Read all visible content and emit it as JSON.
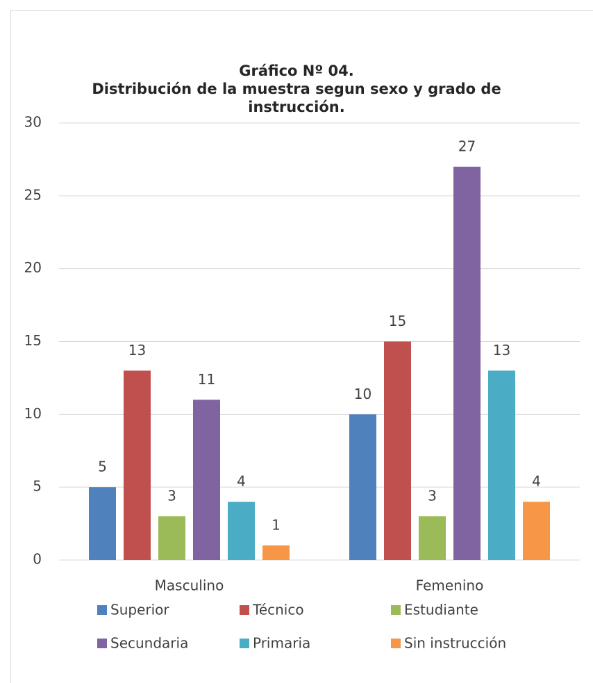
{
  "chart_data": {
    "type": "bar",
    "title": [
      "Gráfico Nº 04.",
      "Distribución de la muestra segun sexo y grado de",
      "instrucción."
    ],
    "categories": [
      "Masculino",
      "Femenino"
    ],
    "series": [
      {
        "name": "Superior",
        "color": "#4f81bd",
        "values": [
          5,
          10
        ]
      },
      {
        "name": "Técnico",
        "color": "#c0504d",
        "values": [
          13,
          15
        ]
      },
      {
        "name": "Estudiante",
        "color": "#9bbb59",
        "values": [
          3,
          3
        ]
      },
      {
        "name": "Secundaria",
        "color": "#8064a2",
        "values": [
          11,
          27
        ]
      },
      {
        "name": "Primaria",
        "color": "#4bacc6",
        "values": [
          4,
          13
        ]
      },
      {
        "name": "Sin instrucción",
        "color": "#f79646",
        "values": [
          1,
          4
        ]
      }
    ],
    "ylim": [
      0,
      30
    ],
    "yticks": [
      0,
      5,
      10,
      15,
      20,
      25,
      30
    ],
    "grid": true,
    "legend": "bottom"
  }
}
